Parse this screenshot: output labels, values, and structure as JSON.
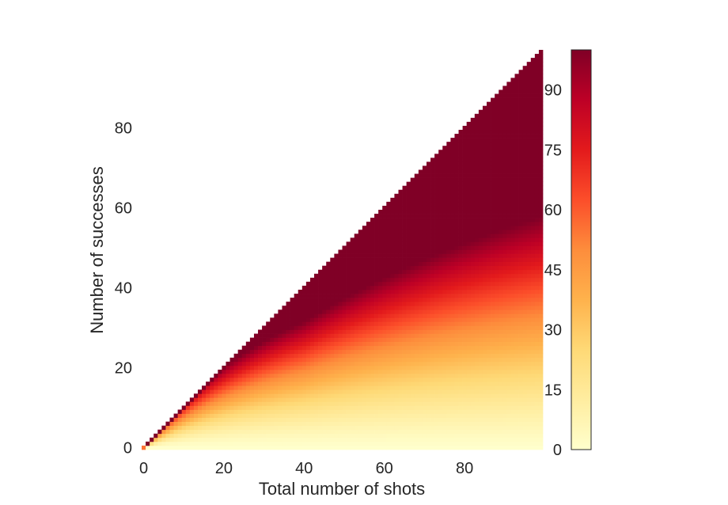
{
  "chart_data": {
    "type": "heatmap",
    "title": "",
    "xlabel": "Total number of shots",
    "ylabel": "Number of successes",
    "n_cells": 100,
    "xlim": [
      0,
      99
    ],
    "ylim": [
      0,
      99
    ],
    "x_ticks": [
      0,
      20,
      40,
      60,
      80
    ],
    "y_ticks": [
      0,
      20,
      40,
      60,
      80
    ],
    "colorbar": {
      "range": [
        0,
        100
      ],
      "ticks": [
        0,
        15,
        30,
        45,
        60,
        75,
        90
      ],
      "colormap": "YlOrRd",
      "colors": [
        "#ffffcc",
        "#ffeda0",
        "#fed976",
        "#feb24c",
        "#fd8d3c",
        "#fc4e2a",
        "#e31a1c",
        "#bd0026",
        "#800026"
      ]
    },
    "mask": "cells with successes > shots are empty",
    "value_description": "color encodes a percentile-like value that increases with successes/shots ratio; saturates near 100 on the diagonal and near 0 at the bottom"
  }
}
